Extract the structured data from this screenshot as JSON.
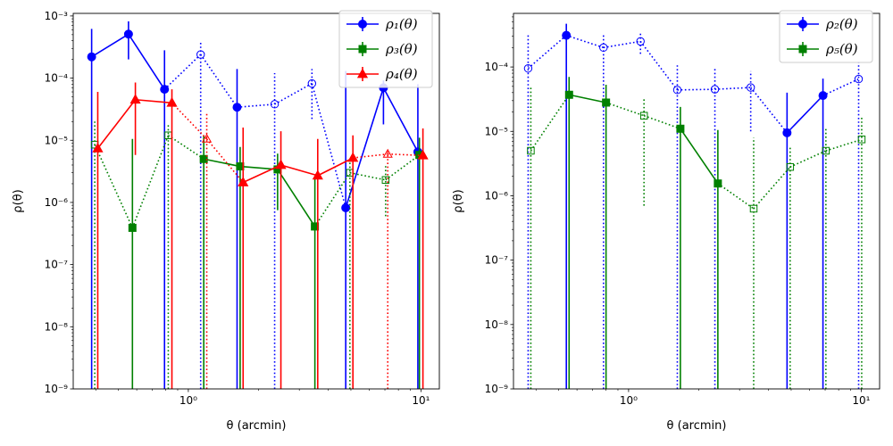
{
  "chart_data": [
    {
      "type": "scatter",
      "xlabel": "θ (arcmin)",
      "ylabel": "ρ(θ)",
      "xscale": "log",
      "yscale": "log",
      "xlim": [
        0.32,
        12
      ],
      "ylim": [
        1e-09,
        0.0011
      ],
      "x_ticks": [
        {
          "v": 1,
          "label": "10⁰"
        },
        {
          "v": 10,
          "label": "10¹"
        }
      ],
      "y_ticks": [
        {
          "v": 1e-09,
          "label": "10⁻⁹"
        },
        {
          "v": 1e-08,
          "label": "10⁻⁸"
        },
        {
          "v": 1e-07,
          "label": "10⁻⁷"
        },
        {
          "v": 1e-06,
          "label": "10⁻⁶"
        },
        {
          "v": 1e-05,
          "label": "10⁻⁵"
        },
        {
          "v": 0.0001,
          "label": "10⁻⁴"
        },
        {
          "v": 0.001,
          "label": "10⁻³"
        }
      ],
      "legend_position": "upper right",
      "series": [
        {
          "name": "ρ₁(θ)",
          "color": "#0000ff",
          "marker": "circle",
          "points": [
            {
              "x": 0.384,
              "y": 0.00022,
              "lo": 1e-09,
              "hi": 0.00062,
              "neg": false
            },
            {
              "x": 0.553,
              "y": 0.00051,
              "lo": 0.0002,
              "hi": 0.00082,
              "neg": false
            },
            {
              "x": 0.79,
              "y": 6.6e-05,
              "lo": 1e-09,
              "hi": 0.00028,
              "neg": false
            },
            {
              "x": 1.13,
              "y": 0.00024,
              "lo": 1e-09,
              "hi": 0.00038,
              "neg": true
            },
            {
              "x": 1.62,
              "y": 3.4e-05,
              "lo": 1e-09,
              "hi": 0.00014,
              "neg": false
            },
            {
              "x": 2.35,
              "y": 3.8e-05,
              "lo": 1e-09,
              "hi": 0.00012,
              "neg": true
            },
            {
              "x": 3.4,
              "y": 8.2e-05,
              "lo": 2.2e-05,
              "hi": 0.00014,
              "neg": true
            },
            {
              "x": 4.75,
              "y": 8.2e-07,
              "lo": 1e-09,
              "hi": 0.00013,
              "neg": false
            },
            {
              "x": 6.9,
              "y": 7e-05,
              "lo": 1.8e-05,
              "hi": 9.2e-05,
              "neg": false
            },
            {
              "x": 9.7,
              "y": 6.5e-06,
              "lo": 1e-09,
              "hi": 8e-05,
              "neg": false
            }
          ]
        },
        {
          "name": "ρ₃(θ)",
          "color": "#008000",
          "marker": "square",
          "points": [
            {
              "x": 0.396,
              "y": 8.5e-06,
              "lo": 1e-09,
              "hi": 2.1e-05,
              "neg": true
            },
            {
              "x": 0.575,
              "y": 3.9e-07,
              "lo": 1e-09,
              "hi": 1.05e-05,
              "neg": false
            },
            {
              "x": 0.82,
              "y": 1.2e-05,
              "lo": 1e-09,
              "hi": 1.8e-05,
              "neg": true
            },
            {
              "x": 1.165,
              "y": 5e-06,
              "lo": 1e-09,
              "hi": 1.2e-05,
              "neg": false
            },
            {
              "x": 1.67,
              "y": 3.8e-06,
              "lo": 1e-09,
              "hi": 7.8e-06,
              "neg": false
            },
            {
              "x": 2.42,
              "y": 3.4e-06,
              "lo": 7.5e-07,
              "hi": 6.1e-06,
              "neg": false
            },
            {
              "x": 3.5,
              "y": 4.1e-07,
              "lo": 1e-09,
              "hi": 2.5e-06,
              "neg": false
            },
            {
              "x": 4.95,
              "y": 3e-06,
              "lo": 1e-09,
              "hi": 5e-06,
              "neg": true
            },
            {
              "x": 7.05,
              "y": 2.3e-06,
              "lo": 6e-07,
              "hi": 4e-06,
              "neg": true
            },
            {
              "x": 9.85,
              "y": 5.8e-06,
              "lo": 1e-09,
              "hi": 1.1e-05,
              "neg": false
            }
          ]
        },
        {
          "name": "ρ₄(θ)",
          "color": "#ff0000",
          "marker": "triangle",
          "points": [
            {
              "x": 0.408,
              "y": 7.4e-06,
              "lo": 1e-09,
              "hi": 6e-05,
              "neg": false
            },
            {
              "x": 0.592,
              "y": 4.5e-05,
              "lo": 5.8e-06,
              "hi": 8.5e-05,
              "neg": false
            },
            {
              "x": 0.85,
              "y": 4e-05,
              "lo": 1e-09,
              "hi": 6.6e-05,
              "neg": false
            },
            {
              "x": 1.2,
              "y": 1.05e-05,
              "lo": 1e-09,
              "hi": 2.8e-05,
              "neg": true
            },
            {
              "x": 1.72,
              "y": 2.1e-06,
              "lo": 1e-09,
              "hi": 1.6e-05,
              "neg": false
            },
            {
              "x": 2.5,
              "y": 4e-06,
              "lo": 1e-09,
              "hi": 1.4e-05,
              "neg": false
            },
            {
              "x": 3.6,
              "y": 2.7e-06,
              "lo": 1e-09,
              "hi": 1.05e-05,
              "neg": false
            },
            {
              "x": 5.1,
              "y": 5.2e-06,
              "lo": 1e-09,
              "hi": 1.2e-05,
              "neg": false
            },
            {
              "x": 7.2,
              "y": 6e-06,
              "lo": 1e-09,
              "hi": 6.8e-06,
              "neg": true
            },
            {
              "x": 10.2,
              "y": 5.7e-06,
              "lo": 1e-09,
              "hi": 1.55e-05,
              "neg": false
            }
          ]
        }
      ]
    },
    {
      "type": "scatter",
      "xlabel": "θ (arcmin)",
      "ylabel": "ρ(θ)",
      "xscale": "log",
      "yscale": "log",
      "xlim": [
        0.32,
        12
      ],
      "ylim": [
        1e-09,
        0.00068
      ],
      "x_ticks": [
        {
          "v": 1,
          "label": "10⁰"
        },
        {
          "v": 10,
          "label": "10¹"
        }
      ],
      "y_ticks": [
        {
          "v": 1e-09,
          "label": "10⁻⁹"
        },
        {
          "v": 1e-08,
          "label": "10⁻⁸"
        },
        {
          "v": 1e-07,
          "label": "10⁻⁷"
        },
        {
          "v": 1e-06,
          "label": "10⁻⁶"
        },
        {
          "v": 1e-05,
          "label": "10⁻⁵"
        },
        {
          "v": 0.0001,
          "label": "10⁻⁴"
        }
      ],
      "legend_position": "upper right",
      "series": [
        {
          "name": "ρ₂(θ)",
          "color": "#0000ff",
          "marker": "circle",
          "points": [
            {
              "x": 0.37,
              "y": 9.5e-05,
              "lo": 1e-09,
              "hi": 0.00033,
              "neg": true
            },
            {
              "x": 0.54,
              "y": 0.00031,
              "lo": 1e-09,
              "hi": 0.00047,
              "neg": false
            },
            {
              "x": 0.78,
              "y": 0.0002,
              "lo": 1e-09,
              "hi": 0.00033,
              "neg": true
            },
            {
              "x": 1.125,
              "y": 0.00025,
              "lo": 0.00016,
              "hi": 0.00034,
              "neg": true
            },
            {
              "x": 1.62,
              "y": 4.4e-05,
              "lo": 1e-09,
              "hi": 0.000112,
              "neg": true
            },
            {
              "x": 2.35,
              "y": 4.5e-05,
              "lo": 1e-09,
              "hi": 9.5e-05,
              "neg": true
            },
            {
              "x": 3.35,
              "y": 4.8e-05,
              "lo": 1e-05,
              "hi": 8.6e-05,
              "neg": true
            },
            {
              "x": 4.8,
              "y": 9.5e-06,
              "lo": 1e-09,
              "hi": 4e-05,
              "neg": false
            },
            {
              "x": 6.85,
              "y": 3.6e-05,
              "lo": 1e-09,
              "hi": 6.6e-05,
              "neg": false
            },
            {
              "x": 9.75,
              "y": 6.5e-05,
              "lo": 1e-09,
              "hi": 0.00012,
              "neg": true
            }
          ]
        },
        {
          "name": "ρ₅(θ)",
          "color": "#008000",
          "marker": "square",
          "points": [
            {
              "x": 0.38,
              "y": 5e-06,
              "lo": 1e-09,
              "hi": 5e-05,
              "neg": true
            },
            {
              "x": 0.555,
              "y": 3.7e-05,
              "lo": 1e-09,
              "hi": 7e-05,
              "neg": false
            },
            {
              "x": 0.8,
              "y": 2.8e-05,
              "lo": 1e-09,
              "hi": 5.3e-05,
              "neg": false
            },
            {
              "x": 1.165,
              "y": 1.75e-05,
              "lo": 7e-07,
              "hi": 3.2e-05,
              "neg": true
            },
            {
              "x": 1.67,
              "y": 1.1e-05,
              "lo": 1e-09,
              "hi": 2.4e-05,
              "neg": false
            },
            {
              "x": 2.42,
              "y": 1.55e-06,
              "lo": 1e-09,
              "hi": 1.05e-05,
              "neg": false
            },
            {
              "x": 3.45,
              "y": 6.3e-07,
              "lo": 1e-09,
              "hi": 8e-06,
              "neg": true
            },
            {
              "x": 4.95,
              "y": 2.8e-06,
              "lo": 1e-09,
              "hi": 6e-06,
              "neg": true
            },
            {
              "x": 7.05,
              "y": 5e-06,
              "lo": 1e-09,
              "hi": 1.1e-05,
              "neg": true
            },
            {
              "x": 10.05,
              "y": 7.5e-06,
              "lo": 1e-09,
              "hi": 1.65e-05,
              "neg": true
            }
          ]
        }
      ]
    }
  ]
}
